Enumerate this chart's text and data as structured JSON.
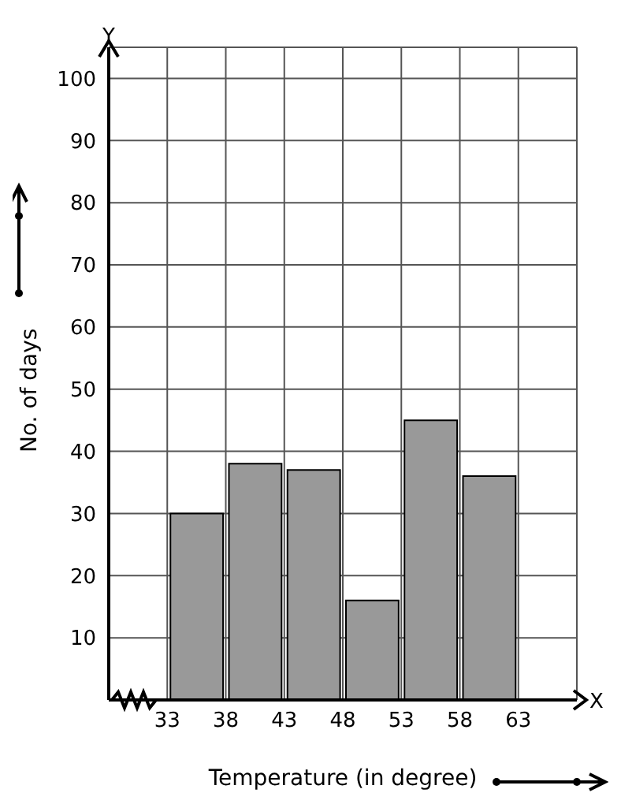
{
  "chart_data": {
    "type": "histogram",
    "xlabel": "Temperature (in degree)",
    "ylabel": "No. of days",
    "bins": [
      33,
      38,
      43,
      48,
      53,
      58,
      63
    ],
    "values": [
      30,
      38,
      37,
      16,
      45,
      36
    ],
    "color": "#999999",
    "xlim": [
      28,
      68
    ],
    "xticks": [
      33,
      38,
      43,
      48,
      53,
      58,
      63
    ],
    "ylim": [
      0,
      105
    ],
    "yticks": [
      10,
      20,
      30,
      40,
      50,
      60,
      70,
      80,
      90,
      100
    ],
    "grid": true,
    "annotations": [
      "X",
      "Y"
    ]
  }
}
